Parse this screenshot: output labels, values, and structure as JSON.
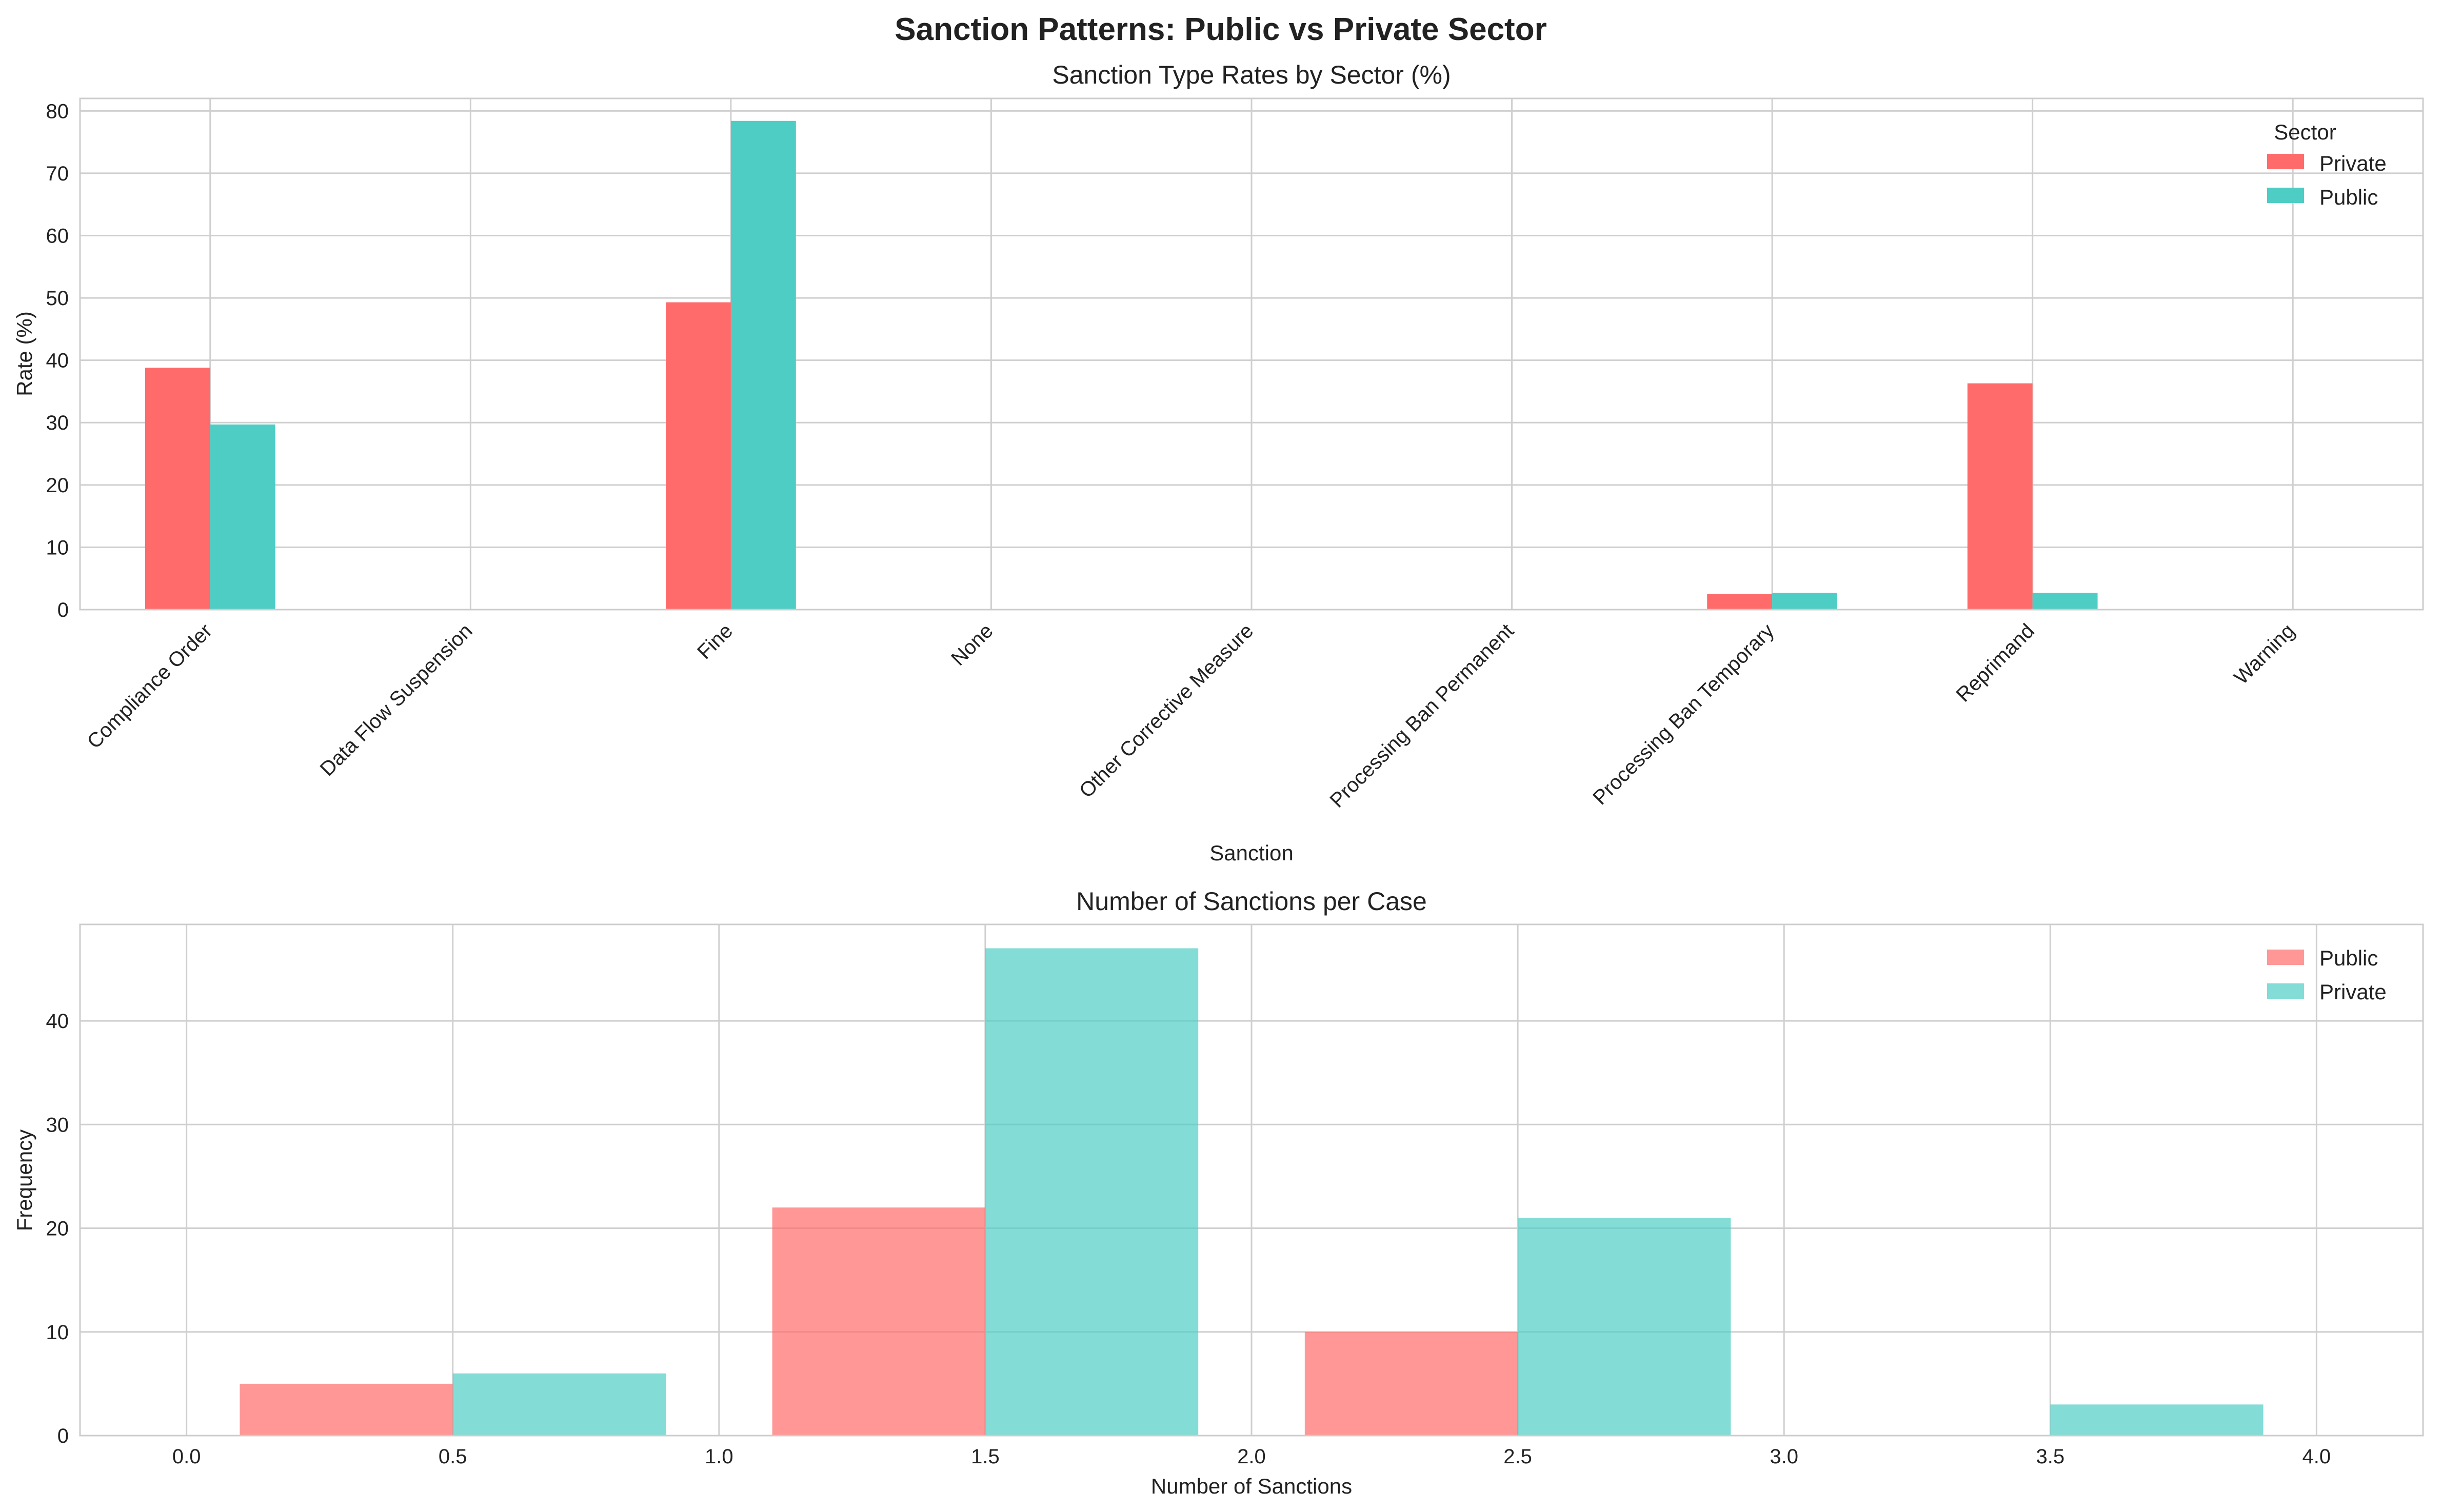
{
  "figure": {
    "title": "Sanction Patterns: Public vs Private Sector"
  },
  "chart_data": [
    {
      "type": "bar",
      "title": "Sanction Type Rates by Sector (%)",
      "xlabel": "Sanction",
      "ylabel": "Rate (%)",
      "ylim": [
        0,
        82
      ],
      "yticks": [
        0,
        10,
        20,
        30,
        40,
        50,
        60,
        70,
        80
      ],
      "categories": [
        "Compliance Order",
        "Data Flow Suspension",
        "Fine",
        "None",
        "Other Corrective Measure",
        "Processing Ban Permanent",
        "Processing Ban Temporary",
        "Reprimand",
        "Warning"
      ],
      "series": [
        {
          "name": "Private",
          "color": "#ff6b6b",
          "values": [
            38.8,
            0,
            49.3,
            0,
            0,
            0,
            2.5,
            36.3,
            0
          ]
        },
        {
          "name": "Public",
          "color": "#4ecdc4",
          "values": [
            29.7,
            0,
            78.4,
            0,
            0,
            0,
            2.7,
            2.7,
            0
          ]
        }
      ],
      "legend": {
        "title": "Sector",
        "position": "top-right"
      },
      "grid": true
    },
    {
      "type": "histogram",
      "title": "Number of Sanctions per Case",
      "xlabel": "Number of Sanctions",
      "ylabel": "Frequency",
      "xlim": [
        -0.2,
        4.2
      ],
      "ylim": [
        0,
        49.3
      ],
      "xticks": [
        "0.0",
        "0.5",
        "1.0",
        "1.5",
        "2.0",
        "2.5",
        "3.0",
        "3.5",
        "4.0"
      ],
      "yticks": [
        0,
        10,
        20,
        30,
        40
      ],
      "series": [
        {
          "name": "Public",
          "color": "#ff6b6b",
          "opacity": 0.7,
          "bins": [
            {
              "x0": 0.1,
              "x1": 0.5,
              "value": 5
            },
            {
              "x0": 1.1,
              "x1": 1.5,
              "value": 22
            },
            {
              "x0": 2.1,
              "x1": 2.5,
              "value": 10
            }
          ]
        },
        {
          "name": "Private",
          "color": "#4ecdc4",
          "opacity": 0.7,
          "bins": [
            {
              "x0": 0.5,
              "x1": 0.9,
              "value": 6
            },
            {
              "x0": 1.5,
              "x1": 1.9,
              "value": 47
            },
            {
              "x0": 2.5,
              "x1": 2.9,
              "value": 21
            },
            {
              "x0": 3.5,
              "x1": 3.9,
              "value": 3
            }
          ]
        }
      ],
      "legend": {
        "position": "top-right"
      },
      "grid": true
    }
  ]
}
